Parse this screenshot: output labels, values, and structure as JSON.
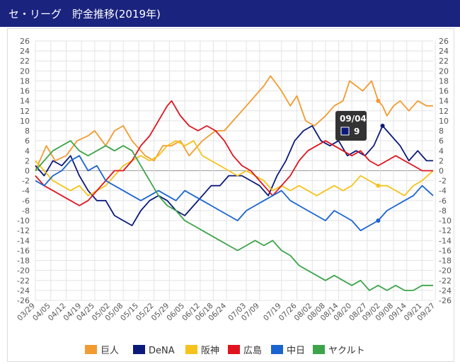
{
  "header": {
    "title": "セ・リーグ　貯金推移(2019年)"
  },
  "colors": {
    "header_bg": "#1a237e",
    "grid": "#e3e3e3",
    "zero_line": "#9e9e9e"
  },
  "tooltip": {
    "date": "09/04",
    "value": "9",
    "series": "DeNA"
  },
  "chart_data": {
    "type": "line",
    "title": "セ・リーグ　貯金推移(2019年)",
    "ylim": [
      -26,
      26
    ],
    "y_ticks": [
      26,
      24,
      22,
      20,
      18,
      16,
      14,
      12,
      10,
      8,
      6,
      4,
      2,
      0,
      -2,
      -4,
      -6,
      -8,
      -10,
      -12,
      -14,
      -16,
      -18,
      -20,
      -22,
      -24,
      -26
    ],
    "x_range": [
      0,
      181
    ],
    "x_ticks": [
      {
        "label": "03/29",
        "x": 0
      },
      {
        "label": "04/05",
        "x": 7
      },
      {
        "label": "04/12",
        "x": 14
      },
      {
        "label": "04/19",
        "x": 21
      },
      {
        "label": "04/25",
        "x": 27
      },
      {
        "label": "05/02",
        "x": 34
      },
      {
        "label": "05/08",
        "x": 40
      },
      {
        "label": "05/15",
        "x": 47
      },
      {
        "label": "05/22",
        "x": 54
      },
      {
        "label": "05/29",
        "x": 61
      },
      {
        "label": "06/05",
        "x": 68
      },
      {
        "label": "06/12",
        "x": 75
      },
      {
        "label": "06/18",
        "x": 81
      },
      {
        "label": "06/24",
        "x": 87
      },
      {
        "label": "07/03",
        "x": 96
      },
      {
        "label": "07/09",
        "x": 102
      },
      {
        "label": "07/19",
        "x": 112
      },
      {
        "label": "07/26",
        "x": 119
      },
      {
        "label": "08/02",
        "x": 126
      },
      {
        "label": "08/08",
        "x": 132
      },
      {
        "label": "08/14",
        "x": 138
      },
      {
        "label": "08/20",
        "x": 144
      },
      {
        "label": "08/27",
        "x": 151
      },
      {
        "label": "09/02",
        "x": 157
      },
      {
        "label": "09/08",
        "x": 163
      },
      {
        "label": "09/14",
        "x": 169
      },
      {
        "label": "09/21",
        "x": 176
      },
      {
        "label": "09/27",
        "x": 182
      }
    ],
    "grid": true,
    "legend": "bottom",
    "series": [
      {
        "name": "巨人",
        "color": "#f29b30",
        "points": [
          [
            0,
            0
          ],
          [
            5,
            5
          ],
          [
            9,
            2
          ],
          [
            14,
            3
          ],
          [
            19,
            6
          ],
          [
            24,
            7
          ],
          [
            27,
            8
          ],
          [
            32,
            5
          ],
          [
            36,
            8
          ],
          [
            40,
            9
          ],
          [
            44,
            6
          ],
          [
            50,
            3
          ],
          [
            54,
            2
          ],
          [
            58,
            5
          ],
          [
            62,
            5
          ],
          [
            66,
            6
          ],
          [
            70,
            3
          ],
          [
            76,
            6
          ],
          [
            82,
            8
          ],
          [
            86,
            8
          ],
          [
            90,
            10
          ],
          [
            96,
            13
          ],
          [
            100,
            15
          ],
          [
            104,
            17
          ],
          [
            107,
            19
          ],
          [
            112,
            16
          ],
          [
            116,
            13
          ],
          [
            119,
            15
          ],
          [
            123,
            10
          ],
          [
            127,
            9
          ],
          [
            132,
            11
          ],
          [
            136,
            13
          ],
          [
            140,
            14
          ],
          [
            143,
            18
          ],
          [
            146,
            17
          ],
          [
            149,
            16
          ],
          [
            153,
            18
          ],
          [
            156,
            14
          ],
          [
            158,
            13
          ],
          [
            160,
            11
          ],
          [
            163,
            13
          ],
          [
            166,
            14
          ],
          [
            170,
            12
          ],
          [
            174,
            14
          ],
          [
            178,
            13
          ],
          [
            181,
            13
          ]
        ]
      },
      {
        "name": "DeNA",
        "color": "#0b1a7a",
        "points": [
          [
            0,
            1
          ],
          [
            4,
            -1
          ],
          [
            8,
            2
          ],
          [
            12,
            1
          ],
          [
            16,
            3
          ],
          [
            20,
            -1
          ],
          [
            24,
            -4
          ],
          [
            28,
            -6
          ],
          [
            32,
            -6
          ],
          [
            36,
            -9
          ],
          [
            40,
            -10
          ],
          [
            44,
            -11
          ],
          [
            48,
            -8
          ],
          [
            52,
            -6
          ],
          [
            56,
            -5
          ],
          [
            60,
            -6
          ],
          [
            64,
            -8
          ],
          [
            68,
            -9
          ],
          [
            72,
            -7
          ],
          [
            76,
            -5
          ],
          [
            80,
            -3
          ],
          [
            84,
            -3
          ],
          [
            88,
            -1
          ],
          [
            94,
            -1
          ],
          [
            98,
            -2
          ],
          [
            102,
            -3
          ],
          [
            106,
            -5
          ],
          [
            110,
            -1
          ],
          [
            114,
            2
          ],
          [
            118,
            6
          ],
          [
            122,
            8
          ],
          [
            126,
            9
          ],
          [
            130,
            6
          ],
          [
            134,
            5
          ],
          [
            138,
            6
          ],
          [
            142,
            3
          ],
          [
            146,
            4
          ],
          [
            150,
            3
          ],
          [
            154,
            5
          ],
          [
            158,
            9
          ],
          [
            162,
            7
          ],
          [
            166,
            5
          ],
          [
            170,
            2
          ],
          [
            174,
            4
          ],
          [
            178,
            2
          ],
          [
            181,
            2
          ]
        ]
      },
      {
        "name": "阪神",
        "color": "#f5c31c",
        "points": [
          [
            0,
            2
          ],
          [
            4,
            0
          ],
          [
            8,
            -2
          ],
          [
            12,
            -3
          ],
          [
            16,
            -4
          ],
          [
            20,
            -3
          ],
          [
            24,
            -5
          ],
          [
            28,
            -4
          ],
          [
            32,
            -3
          ],
          [
            36,
            -1
          ],
          [
            40,
            1
          ],
          [
            44,
            2
          ],
          [
            48,
            3
          ],
          [
            52,
            2
          ],
          [
            56,
            3
          ],
          [
            60,
            5
          ],
          [
            64,
            6
          ],
          [
            68,
            5
          ],
          [
            72,
            6
          ],
          [
            76,
            3
          ],
          [
            80,
            2
          ],
          [
            84,
            1
          ],
          [
            88,
            0
          ],
          [
            92,
            -1
          ],
          [
            96,
            0
          ],
          [
            100,
            -1
          ],
          [
            104,
            -2
          ],
          [
            108,
            -4
          ],
          [
            112,
            -3
          ],
          [
            116,
            -4
          ],
          [
            120,
            -3
          ],
          [
            124,
            -4
          ],
          [
            128,
            -5
          ],
          [
            132,
            -4
          ],
          [
            136,
            -3
          ],
          [
            140,
            -4
          ],
          [
            144,
            -3
          ],
          [
            148,
            -1
          ],
          [
            152,
            -2
          ],
          [
            156,
            -3
          ],
          [
            160,
            -3
          ],
          [
            164,
            -4
          ],
          [
            168,
            -5
          ],
          [
            172,
            -3
          ],
          [
            176,
            -2
          ],
          [
            181,
            0
          ]
        ]
      },
      {
        "name": "広島",
        "color": "#e0141e",
        "points": [
          [
            0,
            -1
          ],
          [
            4,
            -3
          ],
          [
            8,
            -4
          ],
          [
            12,
            -5
          ],
          [
            16,
            -6
          ],
          [
            20,
            -7
          ],
          [
            24,
            -6
          ],
          [
            28,
            -4
          ],
          [
            32,
            -2
          ],
          [
            36,
            0
          ],
          [
            40,
            0
          ],
          [
            44,
            2
          ],
          [
            48,
            5
          ],
          [
            52,
            7
          ],
          [
            56,
            10
          ],
          [
            60,
            13
          ],
          [
            62,
            14
          ],
          [
            66,
            11
          ],
          [
            70,
            9
          ],
          [
            74,
            8
          ],
          [
            78,
            9
          ],
          [
            82,
            8
          ],
          [
            86,
            6
          ],
          [
            90,
            3
          ],
          [
            94,
            1
          ],
          [
            98,
            0
          ],
          [
            102,
            -2
          ],
          [
            106,
            -4
          ],
          [
            108,
            -5
          ],
          [
            112,
            -3
          ],
          [
            116,
            -1
          ],
          [
            120,
            2
          ],
          [
            124,
            4
          ],
          [
            128,
            5
          ],
          [
            132,
            6
          ],
          [
            136,
            5
          ],
          [
            140,
            4
          ],
          [
            144,
            3
          ],
          [
            148,
            4
          ],
          [
            152,
            2
          ],
          [
            156,
            1
          ],
          [
            160,
            2
          ],
          [
            164,
            3
          ],
          [
            168,
            2
          ],
          [
            172,
            1
          ],
          [
            176,
            0
          ],
          [
            181,
            0
          ]
        ]
      },
      {
        "name": "中日",
        "color": "#1a64d0",
        "points": [
          [
            0,
            -2
          ],
          [
            4,
            -3
          ],
          [
            8,
            -1
          ],
          [
            12,
            0
          ],
          [
            16,
            2
          ],
          [
            20,
            3
          ],
          [
            24,
            0
          ],
          [
            28,
            1
          ],
          [
            32,
            -2
          ],
          [
            36,
            -3
          ],
          [
            40,
            -4
          ],
          [
            44,
            -5
          ],
          [
            48,
            -6
          ],
          [
            52,
            -5
          ],
          [
            56,
            -4
          ],
          [
            60,
            -5
          ],
          [
            64,
            -6
          ],
          [
            68,
            -4
          ],
          [
            72,
            -5
          ],
          [
            76,
            -6
          ],
          [
            80,
            -7
          ],
          [
            84,
            -8
          ],
          [
            88,
            -9
          ],
          [
            92,
            -10
          ],
          [
            96,
            -8
          ],
          [
            100,
            -7
          ],
          [
            104,
            -6
          ],
          [
            108,
            -5
          ],
          [
            112,
            -4
          ],
          [
            116,
            -6
          ],
          [
            120,
            -7
          ],
          [
            124,
            -8
          ],
          [
            128,
            -9
          ],
          [
            132,
            -10
          ],
          [
            136,
            -8
          ],
          [
            140,
            -9
          ],
          [
            144,
            -10
          ],
          [
            148,
            -12
          ],
          [
            152,
            -11
          ],
          [
            156,
            -10
          ],
          [
            160,
            -8
          ],
          [
            164,
            -7
          ],
          [
            168,
            -6
          ],
          [
            172,
            -5
          ],
          [
            176,
            -3
          ],
          [
            181,
            -5
          ]
        ]
      },
      {
        "name": "ヤクルト",
        "color": "#3da44a",
        "points": [
          [
            0,
            0
          ],
          [
            4,
            2
          ],
          [
            8,
            4
          ],
          [
            12,
            5
          ],
          [
            16,
            6
          ],
          [
            20,
            4
          ],
          [
            24,
            3
          ],
          [
            28,
            4
          ],
          [
            32,
            5
          ],
          [
            36,
            4
          ],
          [
            40,
            5
          ],
          [
            44,
            4
          ],
          [
            48,
            1
          ],
          [
            52,
            -2
          ],
          [
            56,
            -5
          ],
          [
            60,
            -7
          ],
          [
            64,
            -8
          ],
          [
            68,
            -10
          ],
          [
            72,
            -11
          ],
          [
            76,
            -12
          ],
          [
            80,
            -13
          ],
          [
            84,
            -14
          ],
          [
            88,
            -15
          ],
          [
            92,
            -16
          ],
          [
            96,
            -15
          ],
          [
            100,
            -14
          ],
          [
            104,
            -15
          ],
          [
            108,
            -14
          ],
          [
            112,
            -16
          ],
          [
            116,
            -17
          ],
          [
            120,
            -19
          ],
          [
            124,
            -20
          ],
          [
            128,
            -21
          ],
          [
            132,
            -22
          ],
          [
            136,
            -21
          ],
          [
            140,
            -22
          ],
          [
            144,
            -23
          ],
          [
            148,
            -22
          ],
          [
            152,
            -24
          ],
          [
            156,
            -23
          ],
          [
            160,
            -24
          ],
          [
            164,
            -23
          ],
          [
            168,
            -24
          ],
          [
            172,
            -24
          ],
          [
            176,
            -23
          ],
          [
            181,
            -23
          ]
        ]
      }
    ]
  }
}
